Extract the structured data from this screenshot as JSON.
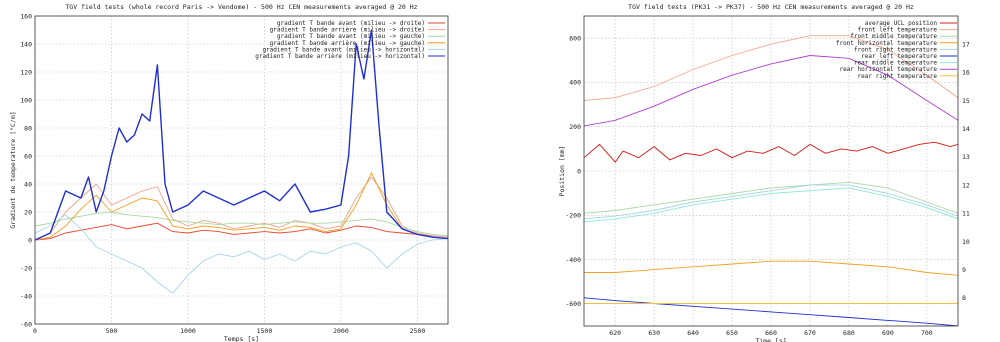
{
  "chart_data": [
    {
      "type": "line",
      "title": "TGV field tests (whole record Paris -> Vendome) - 500 Hz CEN measurements averaged @ 20 Hz",
      "xlabel": "Temps [s]",
      "ylabel": "Gradient de temperature [°C/m]",
      "xlim": [
        0,
        2700
      ],
      "ylim": [
        -60,
        160
      ],
      "xticks": [
        0,
        500,
        1000,
        1500,
        2000,
        2500
      ],
      "yticks": [
        -60,
        -40,
        -20,
        0,
        20,
        40,
        60,
        80,
        100,
        120,
        140,
        160
      ],
      "grid": true,
      "legend_position": "top-right",
      "series": [
        {
          "name": "gradient T bande avant (milieu -> droite)",
          "color": "#e8442c",
          "x": [
            0,
            100,
            200,
            300,
            400,
            500,
            600,
            700,
            800,
            900,
            1000,
            1100,
            1200,
            1300,
            1400,
            1500,
            1600,
            1700,
            1800,
            1900,
            2000,
            2100,
            2200,
            2300,
            2400,
            2500,
            2600,
            2700
          ],
          "y": [
            0,
            1,
            5,
            7,
            9,
            11,
            8,
            10,
            12,
            6,
            5,
            7,
            6,
            4,
            5,
            6,
            5,
            6,
            8,
            5,
            7,
            10,
            9,
            6,
            5,
            4,
            3,
            2
          ]
        },
        {
          "name": "gradient T bande arrière (milieu -> droite)",
          "color": "#f2a38c",
          "x": [
            0,
            100,
            200,
            300,
            400,
            500,
            600,
            700,
            800,
            900,
            1000,
            1100,
            1200,
            1300,
            1400,
            1500,
            1600,
            1700,
            1800,
            1900,
            2000,
            2100,
            2200,
            2300,
            2400,
            2500,
            2600,
            2700
          ],
          "y": [
            0,
            5,
            20,
            30,
            40,
            25,
            30,
            35,
            38,
            15,
            10,
            14,
            12,
            8,
            10,
            12,
            9,
            14,
            12,
            8,
            10,
            30,
            45,
            30,
            10,
            5,
            3,
            2
          ]
        },
        {
          "name": "gradient T bande avant (milieu -> gauche)",
          "color": "#a8d8a0",
          "x": [
            0,
            100,
            200,
            300,
            400,
            500,
            600,
            700,
            800,
            900,
            1000,
            1100,
            1200,
            1300,
            1400,
            1500,
            1600,
            1700,
            1800,
            1900,
            2000,
            2100,
            2200,
            2300,
            2400,
            2500,
            2600,
            2700
          ],
          "y": [
            10,
            12,
            15,
            17,
            19,
            20,
            18,
            17,
            16,
            14,
            13,
            12,
            11,
            12,
            12,
            11,
            12,
            13,
            12,
            12,
            13,
            14,
            15,
            13,
            9,
            6,
            4,
            3
          ]
        },
        {
          "name": "gradient T bande arrière (milieu -> gauche)",
          "color": "#f0a020",
          "x": [
            0,
            100,
            200,
            300,
            400,
            500,
            600,
            700,
            800,
            900,
            1000,
            1100,
            1200,
            1300,
            1400,
            1500,
            1600,
            1700,
            1800,
            1900,
            2000,
            2100,
            2200,
            2300,
            2400,
            2500,
            2600,
            2700
          ],
          "y": [
            0,
            2,
            10,
            22,
            32,
            20,
            25,
            30,
            28,
            10,
            8,
            10,
            9,
            7,
            8,
            9,
            7,
            10,
            9,
            6,
            8,
            25,
            48,
            25,
            8,
            4,
            2,
            1
          ]
        },
        {
          "name": "gradient T bande avant (milieu -> horizontal)",
          "color": "#a8d4e8",
          "x": [
            0,
            100,
            200,
            300,
            400,
            500,
            600,
            700,
            800,
            900,
            1000,
            1100,
            1200,
            1300,
            1400,
            1500,
            1600,
            1700,
            1800,
            1900,
            2000,
            2100,
            2200,
            2300,
            2400,
            2500,
            2600,
            2700
          ],
          "y": [
            5,
            10,
            18,
            8,
            -5,
            -10,
            -15,
            -20,
            -30,
            -38,
            -25,
            -15,
            -10,
            -12,
            -8,
            -14,
            -10,
            -15,
            -8,
            -10,
            -5,
            -2,
            -8,
            -20,
            -10,
            -3,
            0,
            1
          ]
        },
        {
          "name": "gradient T bande arrière (milieu -> horizontal)",
          "color": "#1f2fd0",
          "x": [
            0,
            100,
            200,
            300,
            350,
            400,
            450,
            500,
            550,
            600,
            650,
            700,
            750,
            800,
            850,
            900,
            1000,
            1100,
            1200,
            1300,
            1400,
            1500,
            1600,
            1700,
            1800,
            1900,
            2000,
            2050,
            2100,
            2150,
            2200,
            2250,
            2300,
            2400,
            2500,
            2600,
            2700
          ],
          "y": [
            0,
            5,
            35,
            30,
            45,
            20,
            35,
            60,
            80,
            70,
            75,
            90,
            85,
            125,
            40,
            20,
            25,
            35,
            30,
            25,
            30,
            35,
            28,
            40,
            20,
            22,
            25,
            60,
            140,
            115,
            150,
            80,
            20,
            8,
            4,
            2,
            1
          ]
        }
      ]
    },
    {
      "type": "line",
      "title": "TGV field tests (PK31 -> PK37) - 500 Hz CEN measurements averaged @ 20 Hz",
      "xlabel": "Time [s]",
      "ylabel": "Position [mm]",
      "xlim": [
        612,
        708
      ],
      "ylim": [
        -700,
        700
      ],
      "y2lim": [
        7,
        18
      ],
      "xticks": [
        620,
        630,
        640,
        650,
        660,
        670,
        680,
        690,
        700
      ],
      "yticks": [
        -600,
        -400,
        -200,
        0,
        200,
        400,
        600
      ],
      "y2ticks": [
        8,
        9,
        10,
        11,
        12,
        13,
        14,
        15,
        16,
        17
      ],
      "grid": true,
      "legend_position": "top-right",
      "series": [
        {
          "name": "average UCL position",
          "color": "#d81818",
          "axis": "left",
          "x": [
            612,
            616,
            620,
            622,
            626,
            630,
            634,
            638,
            642,
            646,
            650,
            654,
            658,
            662,
            666,
            670,
            674,
            678,
            682,
            686,
            690,
            694,
            698,
            702,
            706,
            708
          ],
          "y": [
            60,
            120,
            40,
            90,
            60,
            110,
            50,
            80,
            70,
            100,
            60,
            90,
            80,
            110,
            70,
            120,
            80,
            100,
            90,
            110,
            80,
            100,
            120,
            130,
            110,
            120
          ]
        },
        {
          "name": "front left temperature",
          "color": "#f4a890",
          "axis": "right",
          "x": [
            612,
            620,
            630,
            640,
            650,
            660,
            670,
            680,
            690,
            700,
            708
          ],
          "y": [
            15.0,
            15.1,
            15.5,
            16.1,
            16.6,
            17.0,
            17.3,
            17.3,
            16.8,
            15.9,
            15.1
          ]
        },
        {
          "name": "front middle temperature",
          "color": "#a8d8a0",
          "axis": "right",
          "x": [
            612,
            620,
            630,
            640,
            650,
            660,
            670,
            680,
            690,
            700,
            708
          ],
          "y": [
            11.0,
            11.1,
            11.3,
            11.5,
            11.7,
            11.9,
            12.0,
            12.1,
            11.9,
            11.4,
            11.0
          ]
        },
        {
          "name": "front horizontal temperature",
          "color": "#f0a020",
          "axis": "right",
          "x": [
            612,
            620,
            630,
            640,
            650,
            660,
            670,
            680,
            690,
            700,
            708
          ],
          "y": [
            8.9,
            8.9,
            9.0,
            9.1,
            9.2,
            9.3,
            9.3,
            9.2,
            9.1,
            8.9,
            8.8
          ]
        },
        {
          "name": "front right temperature",
          "color": "#a8d4e8",
          "axis": "right",
          "x": [
            612,
            620,
            630,
            640,
            650,
            660,
            670,
            680,
            690,
            700,
            708
          ],
          "y": [
            10.8,
            10.9,
            11.1,
            11.4,
            11.6,
            11.8,
            12.0,
            12.0,
            11.7,
            11.3,
            10.9
          ]
        },
        {
          "name": "rear left temperature",
          "color": "#1f2fd0",
          "axis": "right",
          "x": [
            612,
            620,
            630,
            640,
            650,
            660,
            670,
            680,
            690,
            700,
            708
          ],
          "y": [
            8.0,
            7.9,
            7.8,
            7.7,
            7.6,
            7.5,
            7.4,
            7.3,
            7.2,
            7.1,
            7.0
          ]
        },
        {
          "name": "rear middle temperature",
          "color": "#90e8d8",
          "axis": "right",
          "x": [
            612,
            620,
            630,
            640,
            650,
            660,
            670,
            680,
            690,
            700,
            708
          ],
          "y": [
            10.7,
            10.8,
            11.0,
            11.3,
            11.5,
            11.7,
            11.8,
            11.9,
            11.6,
            11.2,
            10.8
          ]
        },
        {
          "name": "rear horizontal temperature",
          "color": "#b040d0",
          "axis": "right",
          "x": [
            612,
            620,
            630,
            640,
            650,
            660,
            670,
            680,
            690,
            700,
            708
          ],
          "y": [
            14.1,
            14.3,
            14.8,
            15.4,
            15.9,
            16.3,
            16.6,
            16.5,
            15.9,
            15.0,
            14.3
          ]
        },
        {
          "name": "rear right temperature",
          "color": "#f4c040",
          "axis": "right",
          "x": [
            612,
            620,
            630,
            640,
            650,
            660,
            670,
            680,
            690,
            700,
            708
          ],
          "y": [
            7.8,
            7.8,
            7.8,
            7.8,
            7.8,
            7.8,
            7.8,
            7.8,
            7.8,
            7.8,
            7.8
          ]
        }
      ]
    }
  ]
}
